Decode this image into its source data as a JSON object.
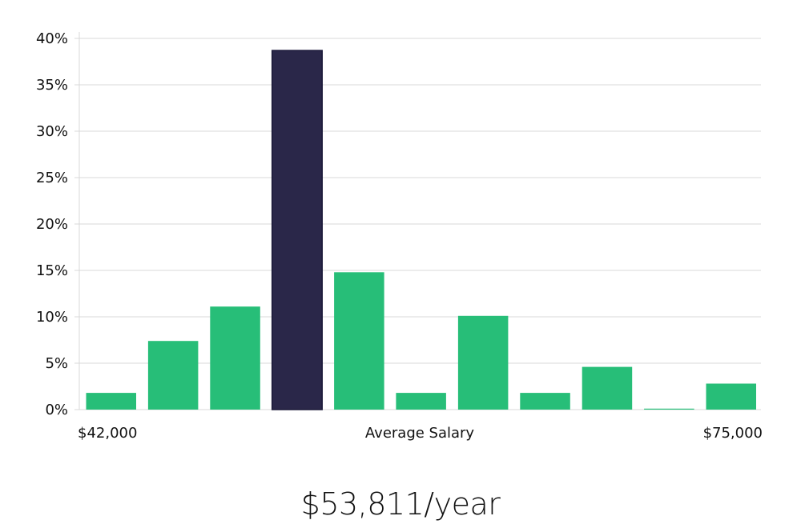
{
  "chart_data": {
    "type": "bar",
    "ylim": [
      0,
      40
    ],
    "y_ticks": [
      0,
      5,
      10,
      15,
      20,
      25,
      30,
      35,
      40
    ],
    "y_tick_labels": [
      "0%",
      "5%",
      "10%",
      "15%",
      "20%",
      "25%",
      "30%",
      "35%",
      "40%"
    ],
    "values": [
      1.8,
      7.4,
      11.1,
      38.7,
      14.8,
      1.8,
      10.1,
      1.8,
      4.6,
      0.1,
      2.8
    ],
    "highlight_index": 3,
    "x_min_label": "$42,000",
    "x_max_label": "$75,000",
    "xlabel": "Average Salary",
    "grid": true,
    "colors": {
      "bar": "#27be78",
      "highlight": "#2a2749",
      "highlight_edge": "#1a1838",
      "grid": "#d9d9d9"
    }
  },
  "caption": "$53,811/year"
}
